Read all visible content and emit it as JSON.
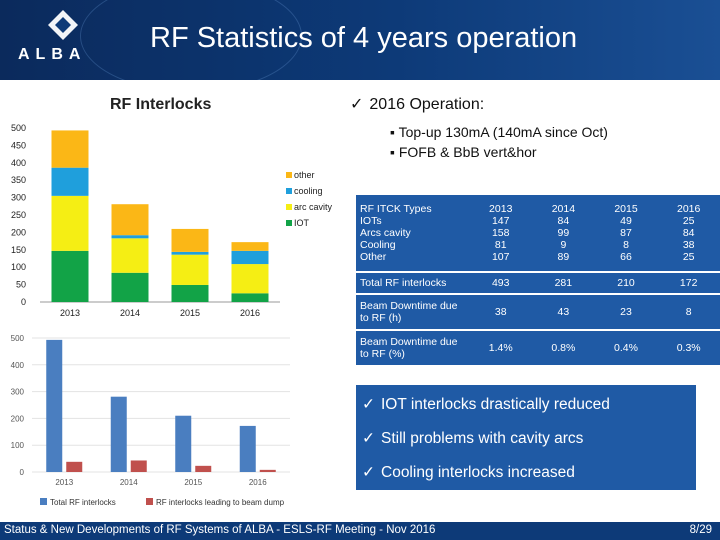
{
  "header": {
    "title": "RF Statistics of 4 years operation",
    "logo_text": "ALBA"
  },
  "chart1": {
    "title": "RF Interlocks"
  },
  "bullets": {
    "main": "2016 Operation:",
    "subs": [
      "Top-up 130mA (140mA since Oct)",
      "FOFB & BbB vert&hor"
    ]
  },
  "table": {
    "header_label": "RF ITCK Types",
    "years": [
      "2013",
      "2014",
      "2015",
      "2016"
    ],
    "type_labels": [
      "IOTs",
      "Arcs cavity",
      "Cooling",
      "Other"
    ],
    "type_values": [
      [
        "147",
        "84",
        "49",
        "25"
      ],
      [
        "158",
        "99",
        "87",
        "84"
      ],
      [
        "81",
        "9",
        "8",
        "38"
      ],
      [
        "107",
        "89",
        "66",
        "25"
      ]
    ],
    "total": {
      "label": "Total RF interlocks",
      "values": [
        "493",
        "281",
        "210",
        "172"
      ]
    },
    "downtime": {
      "label": "Beam Downtime due to RF (h)",
      "values": [
        "38",
        "43",
        "23",
        "8"
      ]
    },
    "downtime_pct": {
      "label": "Beam Downtime due to RF  (%)",
      "values": [
        "1.4%",
        "0.8%",
        "0.4%",
        "0.3%"
      ]
    }
  },
  "conclusions": [
    "IOT interlocks drastically reduced",
    "Still problems with cavity arcs",
    "Cooling interlocks increased"
  ],
  "footer": {
    "text": "Status & New Developments of RF Systems of ALBA - ESLS-RF Meeting - Nov 2016",
    "page": "8/29"
  },
  "chart_data": [
    {
      "type": "bar",
      "stacked": true,
      "title": "RF Interlocks",
      "categories": [
        "2013",
        "2014",
        "2015",
        "2016"
      ],
      "series": [
        {
          "name": "IOT",
          "values": [
            147,
            84,
            49,
            25
          ],
          "color": "#12a347"
        },
        {
          "name": "arc cavity",
          "values": [
            158,
            99,
            87,
            84
          ],
          "color": "#f5ee14"
        },
        {
          "name": "cooling",
          "values": [
            81,
            9,
            8,
            38
          ],
          "color": "#1f9fdc"
        },
        {
          "name": "other",
          "values": [
            107,
            89,
            66,
            25
          ],
          "color": "#fbb716"
        }
      ],
      "ylim": [
        0,
        500
      ],
      "yticks": [
        0,
        50,
        100,
        150,
        200,
        250,
        300,
        350,
        400,
        450,
        500
      ],
      "legend": "right"
    },
    {
      "type": "bar",
      "categories": [
        "2013",
        "2014",
        "2015",
        "2016"
      ],
      "series": [
        {
          "name": "Total RF interlocks",
          "values": [
            493,
            281,
            210,
            172
          ],
          "color": "#4a7ec0"
        },
        {
          "name": "RF interlocks leading to beam dump",
          "values": [
            38,
            43,
            23,
            8
          ],
          "color": "#c0504d"
        }
      ],
      "ylim": [
        0,
        500
      ],
      "yticks": [
        0,
        100,
        200,
        300,
        400,
        500
      ],
      "legend": "bottom"
    }
  ]
}
